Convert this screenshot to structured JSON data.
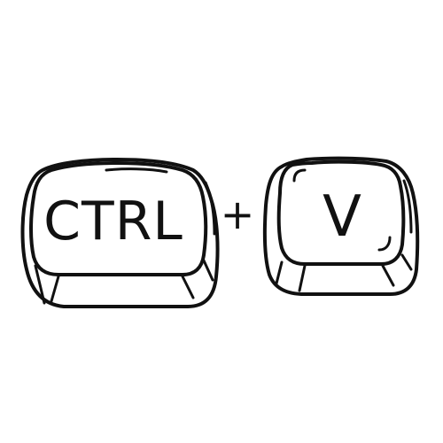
{
  "shortcut": {
    "key1": {
      "label": "CTRL",
      "icon": "ctrl-key-icon"
    },
    "separator": "+",
    "key2": {
      "label": "V",
      "icon": "v-key-icon"
    }
  },
  "colors": {
    "ink": "#111111",
    "background": "#ffffff"
  }
}
